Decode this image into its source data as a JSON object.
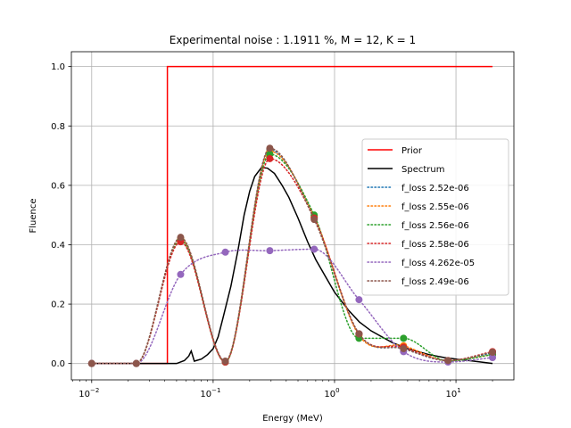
{
  "chart_data": {
    "type": "line",
    "title": "Experimental noise : 1.1911 %, M = 12, K = 1",
    "xlabel": "Energy (MeV)",
    "ylabel": "Fluence",
    "xscale": "log",
    "xlim": [
      0.0068,
      30
    ],
    "ylim": [
      -0.055,
      1.05
    ],
    "grid": true,
    "legend_position": "center-right",
    "xticks": [
      {
        "value": 0.01,
        "base": "10",
        "exp": "−2"
      },
      {
        "value": 0.1,
        "base": "10",
        "exp": "−1"
      },
      {
        "value": 1,
        "base": "10",
        "exp": "0"
      },
      {
        "value": 10,
        "base": "10",
        "exp": "1"
      }
    ],
    "yticks": [
      {
        "value": 0.0,
        "label": "0.0"
      },
      {
        "value": 0.2,
        "label": "0.2"
      },
      {
        "value": 0.4,
        "label": "0.4"
      },
      {
        "value": 0.6,
        "label": "0.6"
      },
      {
        "value": 0.8,
        "label": "0.8"
      },
      {
        "value": 1.0,
        "label": "1.0"
      }
    ],
    "series": [
      {
        "name": "Prior",
        "color": "#ff0000",
        "style": "solid",
        "x": [
          0.042,
          0.042,
          20
        ],
        "y": [
          0.0,
          1.0,
          1.0
        ],
        "start": [
          0.01,
          0.0
        ]
      },
      {
        "name": "Spectrum",
        "color": "#000000",
        "style": "solid",
        "x": [
          0.01,
          0.02,
          0.04,
          0.05,
          0.058,
          0.063,
          0.066,
          0.07,
          0.08,
          0.09,
          0.1,
          0.11,
          0.12,
          0.14,
          0.16,
          0.18,
          0.2,
          0.22,
          0.25,
          0.28,
          0.32,
          0.37,
          0.42,
          0.5,
          0.6,
          0.7,
          0.85,
          1.0,
          1.3,
          1.6,
          2.0,
          3.0,
          4.0,
          6.0,
          8.0,
          10.0,
          14.0,
          20.0
        ],
        "y": [
          0.0,
          0.0,
          0.0,
          0.0,
          0.01,
          0.025,
          0.042,
          0.008,
          0.015,
          0.03,
          0.05,
          0.09,
          0.15,
          0.26,
          0.38,
          0.5,
          0.58,
          0.63,
          0.66,
          0.658,
          0.64,
          0.6,
          0.56,
          0.49,
          0.41,
          0.35,
          0.29,
          0.24,
          0.18,
          0.14,
          0.11,
          0.07,
          0.05,
          0.03,
          0.02,
          0.015,
          0.008,
          0.0
        ]
      },
      {
        "name": "f_loss 2.52e-06",
        "color": "#1f77b4",
        "style": "dotted",
        "points": [
          [
            0.01,
            0.0
          ],
          [
            0.0233,
            0.0
          ],
          [
            0.054,
            0.42
          ],
          [
            0.126,
            0.005
          ],
          [
            0.293,
            0.72
          ],
          [
            0.68,
            0.49
          ],
          [
            1.59,
            0.1
          ],
          [
            3.7,
            0.05
          ],
          [
            8.6,
            0.01
          ],
          [
            20.0,
            0.035
          ]
        ]
      },
      {
        "name": "f_loss 2.55e-06",
        "color": "#ff7f0e",
        "style": "dotted",
        "points": [
          [
            0.01,
            0.0
          ],
          [
            0.0233,
            0.0
          ],
          [
            0.054,
            0.42
          ],
          [
            0.126,
            0.005
          ],
          [
            0.293,
            0.715
          ],
          [
            0.68,
            0.495
          ],
          [
            1.59,
            0.095
          ],
          [
            3.7,
            0.06
          ],
          [
            8.6,
            0.01
          ],
          [
            20.0,
            0.03
          ]
        ]
      },
      {
        "name": "f_loss 2.56e-06",
        "color": "#2ca02c",
        "style": "dotted",
        "points": [
          [
            0.01,
            0.0
          ],
          [
            0.0233,
            0.0
          ],
          [
            0.054,
            0.415
          ],
          [
            0.126,
            0.005
          ],
          [
            0.293,
            0.705
          ],
          [
            0.68,
            0.5
          ],
          [
            1.59,
            0.085
          ],
          [
            3.7,
            0.085
          ],
          [
            8.6,
            0.008
          ],
          [
            20.0,
            0.03
          ]
        ]
      },
      {
        "name": "f_loss 2.58e-06",
        "color": "#d62728",
        "style": "dotted",
        "points": [
          [
            0.01,
            0.0
          ],
          [
            0.0233,
            0.0
          ],
          [
            0.054,
            0.41
          ],
          [
            0.126,
            0.005
          ],
          [
            0.293,
            0.69
          ],
          [
            0.68,
            0.49
          ],
          [
            1.59,
            0.1
          ],
          [
            3.7,
            0.055
          ],
          [
            8.6,
            0.01
          ],
          [
            20.0,
            0.04
          ]
        ]
      },
      {
        "name": "f_loss 4.262e-05",
        "color": "#9467bd",
        "style": "dotted",
        "points": [
          [
            0.01,
            0.0
          ],
          [
            0.0233,
            0.0
          ],
          [
            0.054,
            0.3
          ],
          [
            0.126,
            0.375
          ],
          [
            0.293,
            0.38
          ],
          [
            0.68,
            0.385
          ],
          [
            1.59,
            0.215
          ],
          [
            3.7,
            0.04
          ],
          [
            8.6,
            0.005
          ],
          [
            20.0,
            0.02
          ]
        ]
      },
      {
        "name": "f_loss 2.49e-06",
        "color": "#8c564b",
        "style": "dotted",
        "points": [
          [
            0.01,
            0.0
          ],
          [
            0.0233,
            0.0
          ],
          [
            0.054,
            0.425
          ],
          [
            0.126,
            0.008
          ],
          [
            0.293,
            0.725
          ],
          [
            0.68,
            0.485
          ],
          [
            1.59,
            0.1
          ],
          [
            3.7,
            0.05
          ],
          [
            8.6,
            0.01
          ],
          [
            20.0,
            0.038
          ]
        ]
      }
    ]
  }
}
